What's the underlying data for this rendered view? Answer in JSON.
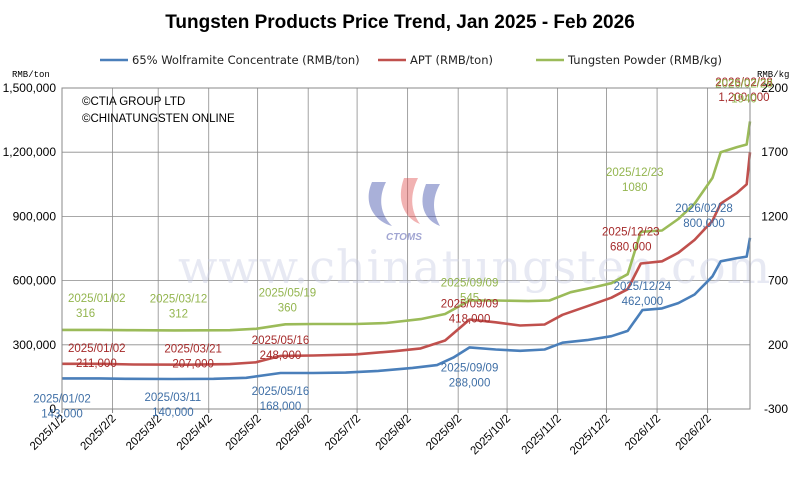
{
  "chart_data": {
    "type": "line",
    "title": "Tungsten Products Price Trend, Jan 2025 - Feb 2026",
    "left_unit": "RMB/ton",
    "right_unit": "RMB/kg",
    "left_axis": {
      "min": 0,
      "max": 1500000,
      "ticks": [
        0,
        300000,
        600000,
        900000,
        1200000,
        1500000
      ],
      "tick_labels": [
        "0",
        "300,000",
        "600,000",
        "900,000",
        "1,200,000",
        "1,500,000"
      ]
    },
    "right_axis": {
      "min": -300,
      "max": 2200,
      "ticks": [
        -300,
        200,
        700,
        1200,
        1700,
        2200
      ],
      "tick_labels": [
        "-300",
        "200",
        "700",
        "1200",
        "1700",
        "2200"
      ]
    },
    "x_axis": {
      "start": "2025-01-02",
      "end": "2026-02-28",
      "ticks": [
        "2025-01-02",
        "2025-02-02",
        "2025-03-02",
        "2025-04-02",
        "2025-05-02",
        "2025-06-02",
        "2025-07-02",
        "2025-08-02",
        "2025-09-02",
        "2025-10-02",
        "2025-11-02",
        "2025-12-02",
        "2026-01-02",
        "2026-02-02"
      ],
      "tick_labels": [
        "2025/1/2",
        "2025/2/2",
        "2025/3/2",
        "2025/4/2",
        "2025/5/2",
        "2025/6/2",
        "2025/7/2",
        "2025/8/2",
        "2025/9/2",
        "2025/10/2",
        "2025/11/2",
        "2025/12/2",
        "2026/1/2",
        "2026/2/2"
      ]
    },
    "grid": true,
    "legend_position": "top",
    "series": [
      {
        "name": "65% Wolframite Concentrate (RMB/ton)",
        "color": "#4a7fba",
        "axis": "left",
        "points": [
          [
            "2025-01-02",
            143000
          ],
          [
            "2025-01-25",
            143000
          ],
          [
            "2025-02-10",
            141000
          ],
          [
            "2025-03-11",
            140000
          ],
          [
            "2025-04-05",
            141000
          ],
          [
            "2025-04-25",
            146000
          ],
          [
            "2025-05-16",
            168000
          ],
          [
            "2025-06-05",
            168000
          ],
          [
            "2025-06-25",
            170000
          ],
          [
            "2025-07-15",
            178000
          ],
          [
            "2025-08-05",
            192000
          ],
          [
            "2025-08-20",
            205000
          ],
          [
            "2025-08-30",
            240000
          ],
          [
            "2025-09-09",
            288000
          ],
          [
            "2025-09-25",
            278000
          ],
          [
            "2025-10-10",
            272000
          ],
          [
            "2025-10-25",
            278000
          ],
          [
            "2025-11-05",
            310000
          ],
          [
            "2025-11-20",
            322000
          ],
          [
            "2025-12-05",
            340000
          ],
          [
            "2025-12-15",
            365000
          ],
          [
            "2025-12-24",
            462000
          ],
          [
            "2026-01-05",
            470000
          ],
          [
            "2026-01-15",
            495000
          ],
          [
            "2026-01-25",
            535000
          ],
          [
            "2026-02-05",
            620000
          ],
          [
            "2026-02-10",
            690000
          ],
          [
            "2026-02-20",
            705000
          ],
          [
            "2026-02-26",
            712000
          ],
          [
            "2026-02-28",
            800000
          ]
        ]
      },
      {
        "name": "APT (RMB/ton)",
        "color": "#c0504d",
        "axis": "left",
        "points": [
          [
            "2025-01-02",
            211000
          ],
          [
            "2025-01-25",
            211000
          ],
          [
            "2025-02-15",
            208000
          ],
          [
            "2025-03-21",
            207000
          ],
          [
            "2025-04-15",
            210000
          ],
          [
            "2025-05-01",
            218000
          ],
          [
            "2025-05-16",
            248000
          ],
          [
            "2025-06-05",
            250000
          ],
          [
            "2025-07-01",
            255000
          ],
          [
            "2025-07-25",
            270000
          ],
          [
            "2025-08-10",
            283000
          ],
          [
            "2025-08-25",
            320000
          ],
          [
            "2025-09-09",
            418000
          ],
          [
            "2025-09-25",
            405000
          ],
          [
            "2025-10-10",
            390000
          ],
          [
            "2025-10-25",
            395000
          ],
          [
            "2025-11-05",
            440000
          ],
          [
            "2025-11-20",
            480000
          ],
          [
            "2025-12-05",
            520000
          ],
          [
            "2025-12-15",
            560000
          ],
          [
            "2025-12-23",
            680000
          ],
          [
            "2026-01-05",
            690000
          ],
          [
            "2026-01-15",
            730000
          ],
          [
            "2026-01-25",
            790000
          ],
          [
            "2026-02-05",
            880000
          ],
          [
            "2026-02-10",
            960000
          ],
          [
            "2026-02-20",
            1010000
          ],
          [
            "2026-02-26",
            1050000
          ],
          [
            "2026-02-28",
            1200000
          ]
        ]
      },
      {
        "name": "Tungsten Powder (RMB/kg)",
        "color": "#9bbb59",
        "axis": "right",
        "points": [
          [
            "2025-01-02",
            316
          ],
          [
            "2025-01-25",
            316
          ],
          [
            "2025-02-15",
            314
          ],
          [
            "2025-03-12",
            312
          ],
          [
            "2025-04-15",
            314
          ],
          [
            "2025-05-01",
            325
          ],
          [
            "2025-05-19",
            360
          ],
          [
            "2025-06-05",
            362
          ],
          [
            "2025-07-01",
            362
          ],
          [
            "2025-07-20",
            370
          ],
          [
            "2025-08-10",
            400
          ],
          [
            "2025-08-25",
            440
          ],
          [
            "2025-09-09",
            545
          ],
          [
            "2025-09-25",
            545
          ],
          [
            "2025-10-15",
            540
          ],
          [
            "2025-10-28",
            545
          ],
          [
            "2025-11-10",
            610
          ],
          [
            "2025-11-25",
            650
          ],
          [
            "2025-12-05",
            680
          ],
          [
            "2025-12-15",
            750
          ],
          [
            "2025-12-23",
            1080
          ],
          [
            "2026-01-05",
            1090
          ],
          [
            "2026-01-15",
            1180
          ],
          [
            "2026-01-25",
            1300
          ],
          [
            "2026-02-05",
            1500
          ],
          [
            "2026-02-10",
            1700
          ],
          [
            "2026-02-20",
            1740
          ],
          [
            "2026-02-26",
            1760
          ],
          [
            "2026-02-28",
            1940
          ]
        ]
      }
    ],
    "annotations": [
      {
        "series": 0,
        "date": "2025/01/02",
        "value": "143,000",
        "x": "2025-01-02"
      },
      {
        "series": 0,
        "date": "2025/03/11",
        "value": "140,000",
        "x": "2025-03-11"
      },
      {
        "series": 0,
        "date": "2025/05/16",
        "value": "168,000",
        "x": "2025-05-16"
      },
      {
        "series": 0,
        "date": "2025/09/09",
        "value": "288,000",
        "x": "2025-09-09"
      },
      {
        "series": 0,
        "date": "2025/12/24",
        "value": "462,000",
        "x": "2025-12-24"
      },
      {
        "series": 0,
        "date": "2026/02/28",
        "value": "800,000",
        "x": "2026-02-28"
      },
      {
        "series": 1,
        "date": "2025/01/02",
        "value": "211,000",
        "x": "2025-01-02"
      },
      {
        "series": 1,
        "date": "2025/03/21",
        "value": "207,000",
        "x": "2025-03-21"
      },
      {
        "series": 1,
        "date": "2025/05/16",
        "value": "248,000",
        "x": "2025-05-16"
      },
      {
        "series": 1,
        "date": "2025/09/09",
        "value": "418,000",
        "x": "2025-09-09"
      },
      {
        "series": 1,
        "date": "2025/12/23",
        "value": "680,000",
        "x": "2025-12-23"
      },
      {
        "series": 1,
        "date": "2026/02/28",
        "value": "1,200,000",
        "x": "2026-02-28"
      },
      {
        "series": 2,
        "date": "2025/01/02",
        "value": "316",
        "x": "2025-01-02"
      },
      {
        "series": 2,
        "date": "2025/03/12",
        "value": "312",
        "x": "2025-03-12"
      },
      {
        "series": 2,
        "date": "2025/05/19",
        "value": "360",
        "x": "2025-05-19"
      },
      {
        "series": 2,
        "date": "2025/09/09",
        "value": "545",
        "x": "2025-09-09"
      },
      {
        "series": 2,
        "date": "2025/12/23",
        "value": "1080",
        "x": "2025-12-23"
      },
      {
        "series": 2,
        "date": "2026/02/28",
        "value": "1940",
        "x": "2026-02-28"
      }
    ],
    "copyright": [
      "©CTIA GROUP LTD",
      "©CHINATUNGSTEN ONLINE"
    ],
    "watermark": {
      "text": "www.chinatungsten.com",
      "logo_text": "CTOMS"
    }
  }
}
